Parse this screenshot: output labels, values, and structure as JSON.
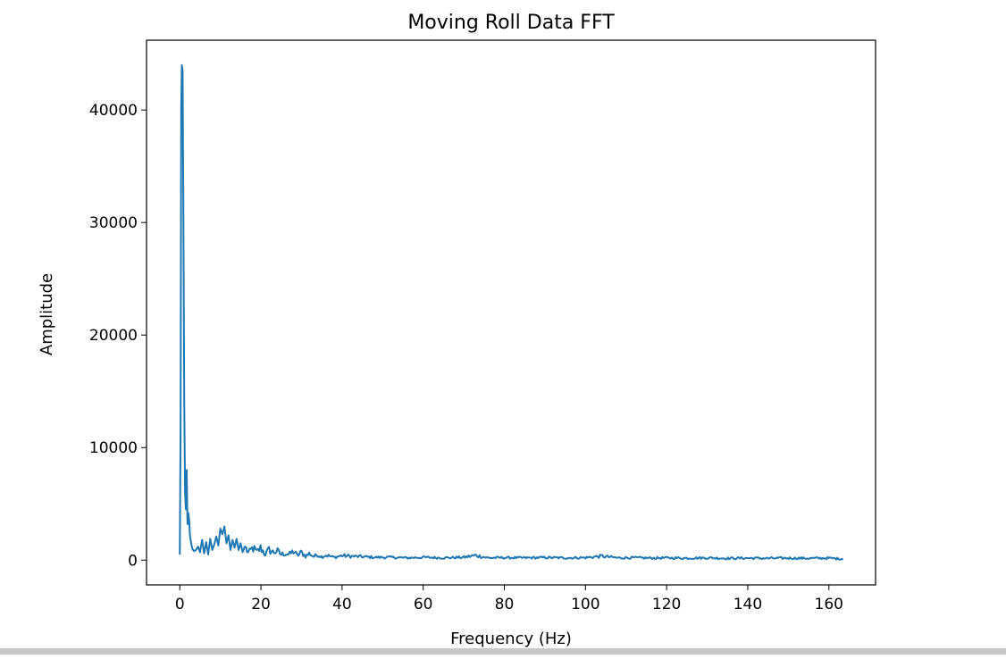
{
  "chart_data": {
    "type": "line",
    "title": "Moving Roll Data FFT",
    "xlabel": "Frequency (Hz)",
    "ylabel": "Amplitude",
    "xlim": [
      -8.2,
      171.5
    ],
    "ylim": [
      -2200,
      46200
    ],
    "xticks": [
      0,
      20,
      40,
      60,
      80,
      100,
      120,
      140,
      160
    ],
    "yticks": [
      0,
      10000,
      20000,
      30000,
      40000
    ],
    "xtick_labels": [
      "0",
      "20",
      "40",
      "60",
      "80",
      "100",
      "120",
      "140",
      "160"
    ],
    "ytick_labels": [
      "0",
      "10000",
      "20000",
      "30000",
      "40000"
    ],
    "grid": false,
    "legend": "none",
    "series": [
      {
        "color": "#1f77b4",
        "x_max": 163.5,
        "points": [
          [
            0.0,
            500
          ],
          [
            0.2,
            12000
          ],
          [
            0.35,
            40000
          ],
          [
            0.5,
            44000
          ],
          [
            0.7,
            43500
          ],
          [
            0.9,
            30000
          ],
          [
            1.1,
            14000
          ],
          [
            1.3,
            6000
          ],
          [
            1.5,
            4500
          ],
          [
            1.7,
            8000
          ],
          [
            1.9,
            3200
          ],
          [
            2.1,
            4200
          ],
          [
            2.3,
            3600
          ],
          [
            2.5,
            2200
          ],
          [
            2.8,
            1500
          ],
          [
            3.1,
            1000
          ],
          [
            3.5,
            800
          ],
          [
            4.0,
            900
          ],
          [
            4.5,
            1200
          ],
          [
            5.0,
            700
          ],
          [
            5.5,
            1800
          ],
          [
            6.0,
            600
          ],
          [
            6.5,
            1600
          ],
          [
            7.0,
            500
          ],
          [
            7.5,
            1900
          ],
          [
            8.0,
            900
          ],
          [
            8.5,
            1400
          ],
          [
            9.0,
            2100
          ],
          [
            9.5,
            1300
          ],
          [
            10.0,
            2800
          ],
          [
            10.5,
            2300
          ],
          [
            11.0,
            3000
          ],
          [
            11.5,
            1500
          ],
          [
            12.0,
            2200
          ],
          [
            12.5,
            900
          ],
          [
            13.0,
            1800
          ],
          [
            13.5,
            1100
          ],
          [
            14.0,
            1900
          ],
          [
            14.5,
            900
          ],
          [
            15.0,
            1500
          ],
          [
            15.5,
            700
          ],
          [
            16.0,
            1200
          ],
          [
            17.0,
            600
          ],
          [
            18.0,
            1100
          ],
          [
            19.0,
            700
          ],
          [
            20.0,
            1100
          ],
          [
            21.0,
            500
          ],
          [
            22.0,
            900
          ],
          [
            23.0,
            700
          ],
          [
            24.0,
            800
          ],
          [
            25.0,
            500
          ],
          [
            26.0,
            600
          ],
          [
            27.0,
            500
          ],
          [
            28.0,
            800
          ],
          [
            29.0,
            400
          ],
          [
            30.0,
            700
          ],
          [
            31.0,
            350
          ],
          [
            32.0,
            600
          ],
          [
            33.0,
            300
          ],
          [
            34.0,
            500
          ],
          [
            35.0,
            300
          ],
          [
            36.0,
            450
          ],
          [
            38.0,
            250
          ],
          [
            40.0,
            400
          ],
          [
            42.0,
            350
          ],
          [
            45.0,
            300
          ],
          [
            48.0,
            250
          ],
          [
            52.0,
            250
          ],
          [
            56.0,
            200
          ],
          [
            60.0,
            250
          ],
          [
            65.0,
            200
          ],
          [
            70.0,
            250
          ],
          [
            73.0,
            420
          ],
          [
            76.0,
            200
          ],
          [
            80.0,
            220
          ],
          [
            85.0,
            200
          ],
          [
            90.0,
            230
          ],
          [
            95.0,
            200
          ],
          [
            100.0,
            220
          ],
          [
            104.0,
            350
          ],
          [
            108.0,
            200
          ],
          [
            112.0,
            220
          ],
          [
            116.0,
            180
          ],
          [
            120.0,
            200
          ],
          [
            125.0,
            180
          ],
          [
            130.0,
            200
          ],
          [
            135.0,
            160
          ],
          [
            140.0,
            180
          ],
          [
            145.0,
            160
          ],
          [
            150.0,
            180
          ],
          [
            155.0,
            160
          ],
          [
            160.0,
            180
          ],
          [
            163.5,
            100
          ]
        ]
      }
    ]
  }
}
